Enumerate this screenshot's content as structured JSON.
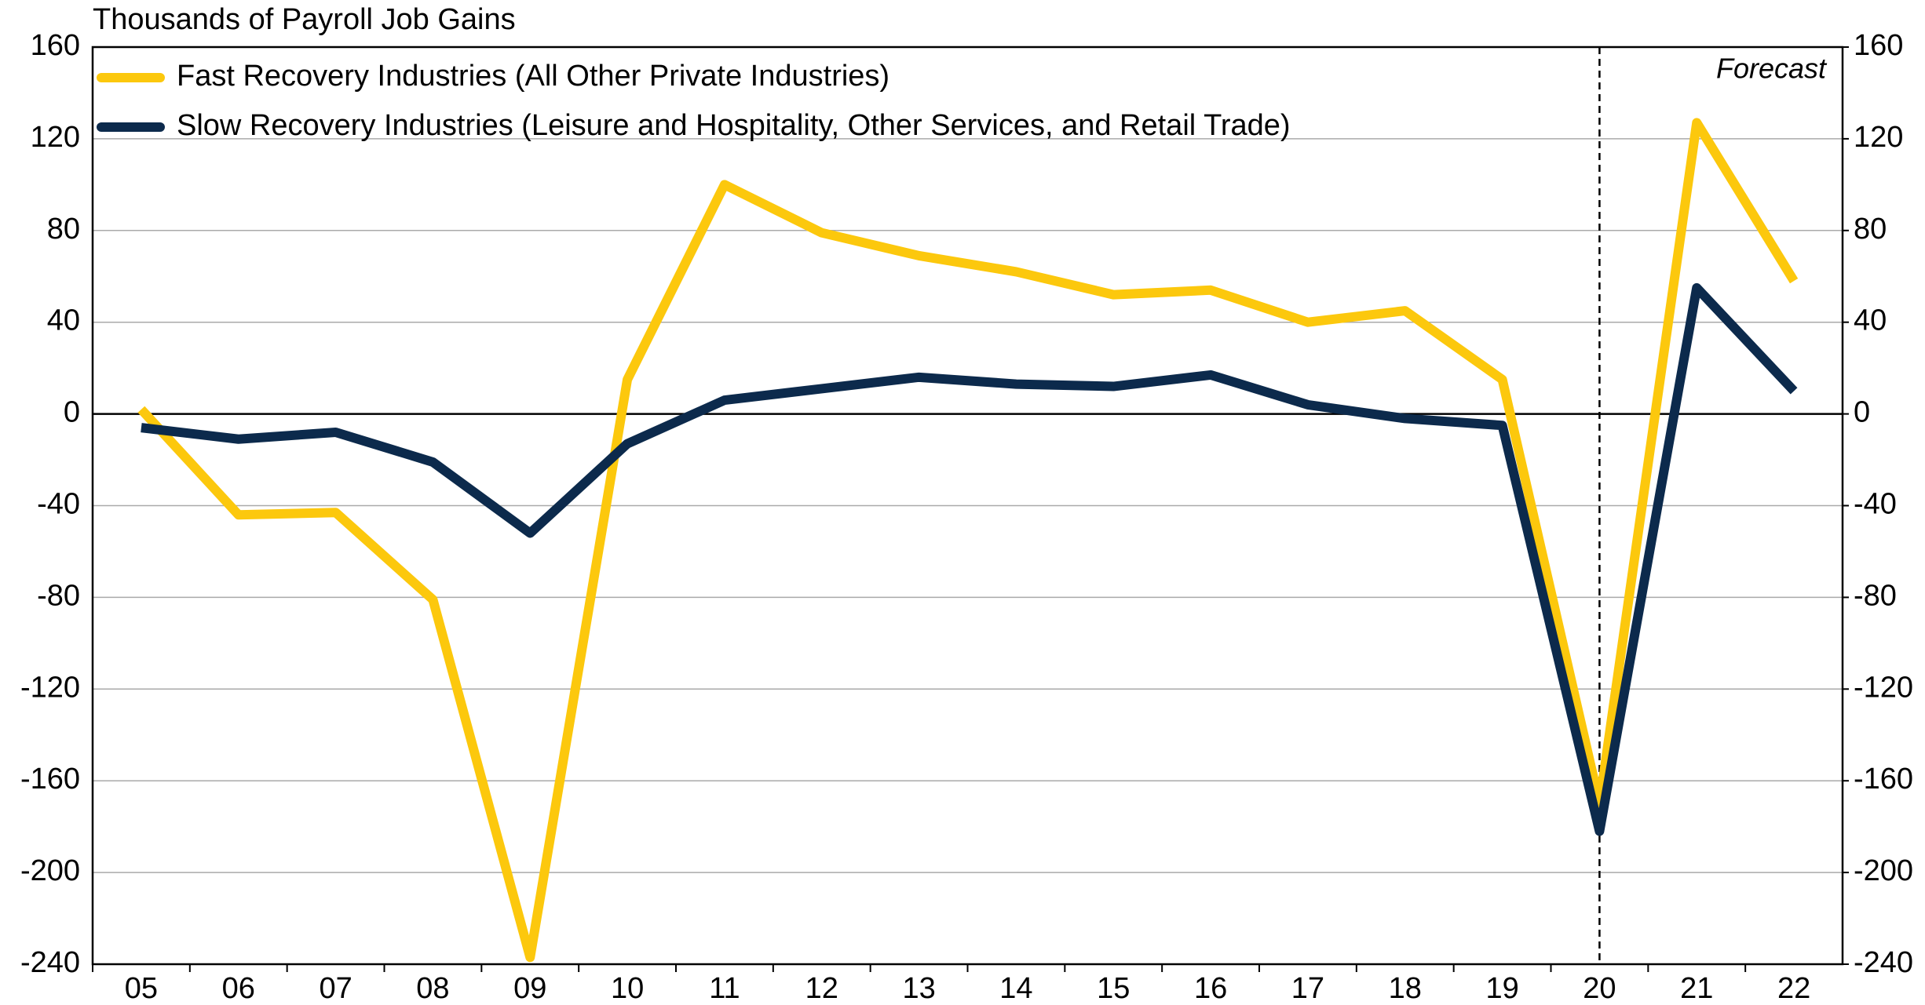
{
  "chart_data": {
    "type": "line",
    "y_label": "Thousands of Payroll Job Gains",
    "annotation": "Forecast",
    "forecast_start": "20",
    "categories": [
      "05",
      "06",
      "07",
      "08",
      "09",
      "10",
      "11",
      "12",
      "13",
      "14",
      "15",
      "16",
      "17",
      "18",
      "19",
      "20",
      "21",
      "22"
    ],
    "series": [
      {
        "name": "Fast Recovery Industries (All Other Private Industries)",
        "color": "#fcc80d",
        "values": [
          2,
          -44,
          -43,
          -81,
          -237,
          15,
          100,
          79,
          69,
          62,
          52,
          54,
          40,
          45,
          15,
          -170,
          127,
          58
        ]
      },
      {
        "name": "Slow Recovery Industries (Leisure and Hospitality, Other Services, and Retail Trade)",
        "color": "#0c2a4c",
        "values": [
          -6,
          -11,
          -8,
          -21,
          -52,
          -13,
          6,
          11,
          16,
          13,
          12,
          17,
          4,
          -2,
          -5,
          -182,
          55,
          10
        ]
      }
    ],
    "ylim": [
      -240,
      160
    ],
    "yticks": [
      -240,
      -200,
      -160,
      -120,
      -80,
      -40,
      0,
      40,
      80,
      120,
      160
    ],
    "y2lim": [
      -240,
      160
    ],
    "y2ticks": [
      -240,
      -200,
      -160,
      -120,
      -80,
      -40,
      0,
      40,
      80,
      120,
      160
    ],
    "grid": true
  }
}
